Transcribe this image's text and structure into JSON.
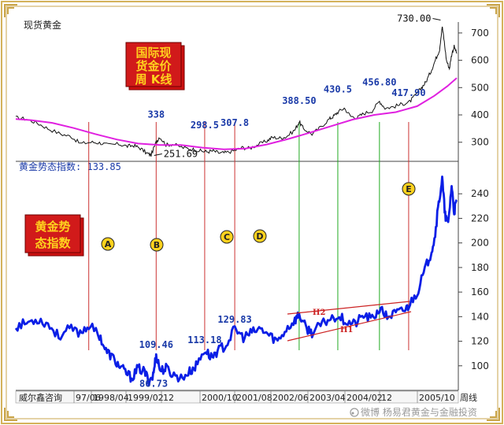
{
  "chart_data": [
    {
      "type": "line",
      "title": "现货黄金",
      "ylim": [
        230,
        740
      ],
      "y_ticks": [
        300,
        400,
        500,
        600,
        700
      ],
      "series": [
        {
          "values": [
            [
              1996.45,
              390
            ],
            [
              1996.7,
              385
            ],
            [
              1996.95,
              370
            ],
            [
              1997.2,
              350
            ],
            [
              1997.5,
              330
            ],
            [
              1997.75,
              320
            ],
            [
              1997.95,
              295
            ],
            [
              1998.2,
              300
            ],
            [
              1998.4,
              298
            ],
            [
              1998.6,
              290
            ],
            [
              1998.85,
              293
            ],
            [
              1999.05,
              285
            ],
            [
              1999.2,
              288
            ],
            [
              1999.35,
              278
            ],
            [
              1999.5,
              260
            ],
            [
              1999.6,
              253
            ],
            [
              1999.72,
              300
            ],
            [
              1999.8,
              320
            ],
            [
              1999.95,
              290
            ],
            [
              2000.1,
              293
            ],
            [
              2000.35,
              280
            ],
            [
              2000.55,
              275
            ],
            [
              2000.75,
              268
            ],
            [
              2000.9,
              265
            ],
            [
              2001.05,
              268
            ],
            [
              2001.2,
              260
            ],
            [
              2001.35,
              262
            ],
            [
              2001.55,
              270
            ],
            [
              2001.72,
              280
            ],
            [
              2001.9,
              278
            ],
            [
              2002.1,
              292
            ],
            [
              2002.3,
              305
            ],
            [
              2002.42,
              318
            ],
            [
              2002.6,
              315
            ],
            [
              2002.75,
              320
            ],
            [
              2002.95,
              345
            ],
            [
              2003.05,
              375
            ],
            [
              2003.15,
              350
            ],
            [
              2003.35,
              330
            ],
            [
              2003.55,
              355
            ],
            [
              2003.75,
              385
            ],
            [
              2003.85,
              395
            ],
            [
              2003.95,
              410
            ],
            [
              2004.1,
              425
            ],
            [
              2004.25,
              395
            ],
            [
              2004.4,
              390
            ],
            [
              2004.55,
              405
            ],
            [
              2004.75,
              415
            ],
            [
              2004.92,
              450
            ],
            [
              2005.05,
              425
            ],
            [
              2005.25,
              430
            ],
            [
              2005.45,
              440
            ],
            [
              2005.6,
              445
            ],
            [
              2005.75,
              470
            ],
            [
              2005.9,
              500
            ],
            [
              2006.0,
              520
            ],
            [
              2006.12,
              560
            ],
            [
              2006.22,
              600
            ],
            [
              2006.32,
              640
            ],
            [
              2006.38,
              725
            ],
            [
              2006.42,
              680
            ],
            [
              2006.48,
              600
            ],
            [
              2006.55,
              570
            ],
            [
              2006.6,
              620
            ],
            [
              2006.66,
              650
            ],
            [
              2006.72,
              625
            ]
          ]
        },
        {
          "values": [
            [
              1996.45,
              385
            ],
            [
              1996.8,
              381
            ],
            [
              1997.3,
              371
            ],
            [
              1997.8,
              352
            ],
            [
              1998.3,
              330
            ],
            [
              1998.8,
              310
            ],
            [
              1999.3,
              295
            ],
            [
              1999.8,
              290
            ],
            [
              2000.3,
              290
            ],
            [
              2000.8,
              280
            ],
            [
              2001.3,
              274
            ],
            [
              2001.8,
              277
            ],
            [
              2002.3,
              292
            ],
            [
              2002.8,
              312
            ],
            [
              2003.3,
              335
            ],
            [
              2003.8,
              359
            ],
            [
              2004.3,
              383
            ],
            [
              2004.8,
              400
            ],
            [
              2005.3,
              410
            ],
            [
              2005.8,
              432
            ],
            [
              2006.2,
              470
            ],
            [
              2006.5,
              505
            ],
            [
              2006.72,
              535
            ]
          ]
        }
      ],
      "annotations": {
        "lows": [
          {
            "x": 1999.6,
            "value": "251.69"
          }
        ],
        "highs": [
          {
            "x": 2006.38,
            "value": "730.00"
          },
          {
            "x": 1999.72,
            "value": "338"
          },
          {
            "x": 2000.85,
            "value": "298.5"
          },
          {
            "x": 2001.55,
            "value": "307.8"
          },
          {
            "x": 2003.05,
            "value": "388.50"
          },
          {
            "x": 2003.95,
            "value": "430.5"
          },
          {
            "x": 2004.92,
            "value": "456.80"
          },
          {
            "x": 2005.6,
            "value": "417.90"
          }
        ],
        "box_text": [
          "国际现",
          "货金价",
          "周 K线"
        ]
      }
    },
    {
      "type": "line",
      "title": "黄金势态指数",
      "value_label": "133.85",
      "ylim": [
        80,
        260
      ],
      "y_ticks": [
        100,
        120,
        140,
        160,
        180,
        200,
        220,
        240
      ],
      "x_ticks": [
        "97/06",
        "1998/04",
        "1999/02",
        "12",
        "2000/10",
        "2001/08",
        "2002/06",
        "2003/04",
        "2004/02",
        "12",
        "2005/10"
      ],
      "series": [
        {
          "values": [
            [
              1996.45,
              132
            ],
            [
              1996.7,
              135
            ],
            [
              1996.95,
              138
            ],
            [
              1997.2,
              134
            ],
            [
              1997.45,
              124
            ],
            [
              1997.7,
              130
            ],
            [
              1997.95,
              127
            ],
            [
              1998.15,
              133
            ],
            [
              1998.4,
              125
            ],
            [
              1998.55,
              112
            ],
            [
              1998.7,
              107
            ],
            [
              1998.85,
              100
            ],
            [
              1999.0,
              95
            ],
            [
              1999.15,
              90
            ],
            [
              1999.3,
              98
            ],
            [
              1999.45,
              95
            ],
            [
              1999.55,
              88
            ],
            [
              1999.65,
              92
            ],
            [
              1999.72,
              109
            ],
            [
              1999.82,
              96
            ],
            [
              1999.95,
              98
            ],
            [
              2000.1,
              93
            ],
            [
              2000.3,
              90
            ],
            [
              2000.5,
              95
            ],
            [
              2000.65,
              100
            ],
            [
              2000.85,
              113
            ],
            [
              2001.0,
              107
            ],
            [
              2001.15,
              112
            ],
            [
              2001.35,
              117
            ],
            [
              2001.55,
              130
            ],
            [
              2001.75,
              123
            ],
            [
              2001.95,
              127
            ],
            [
              2002.15,
              130
            ],
            [
              2002.35,
              125
            ],
            [
              2002.55,
              120
            ],
            [
              2002.75,
              130
            ],
            [
              2002.95,
              137
            ],
            [
              2003.05,
              142
            ],
            [
              2003.2,
              131
            ],
            [
              2003.35,
              127
            ],
            [
              2003.55,
              133
            ],
            [
              2003.75,
              138
            ],
            [
              2003.95,
              141
            ],
            [
              2004.15,
              136
            ],
            [
              2004.35,
              134
            ],
            [
              2004.55,
              141
            ],
            [
              2004.75,
              138
            ],
            [
              2004.92,
              146
            ],
            [
              2005.1,
              140
            ],
            [
              2005.3,
              143
            ],
            [
              2005.5,
              145
            ],
            [
              2005.6,
              149
            ],
            [
              2005.8,
              160
            ],
            [
              2005.95,
              175
            ],
            [
              2006.1,
              190
            ],
            [
              2006.2,
              203
            ],
            [
              2006.3,
              232
            ],
            [
              2006.38,
              252
            ],
            [
              2006.45,
              222
            ],
            [
              2006.52,
              215
            ],
            [
              2006.6,
              247
            ],
            [
              2006.66,
              225
            ],
            [
              2006.72,
              235
            ]
          ]
        }
      ],
      "annotations": {
        "lows": [
          {
            "x": 1999.55,
            "value": "86.73"
          }
        ],
        "highs": [
          {
            "x": 1999.72,
            "value": "109.46"
          },
          {
            "x": 2000.85,
            "value": "113.18"
          },
          {
            "x": 2001.55,
            "value": "129.83"
          }
        ],
        "circles": [
          "A",
          "B",
          "C",
          "D",
          "E"
        ],
        "trend_labels": [
          "H2",
          "H1"
        ],
        "box_text": [
          "黄金势",
          "态指数"
        ]
      }
    }
  ],
  "bottom_bar": {
    "company": "威尔鑫咨询",
    "period": "周线"
  },
  "watermark": "微博 杨易君黄金与金融投资",
  "colors": {
    "price": "#111111",
    "ma": "#e020e0",
    "index": "#0a1ee6",
    "vline_red": "#cc3333",
    "vline_green": "#22aa22",
    "box": "#cc1111",
    "box_text": "#ffd21e",
    "circle": "#ffd21e"
  }
}
